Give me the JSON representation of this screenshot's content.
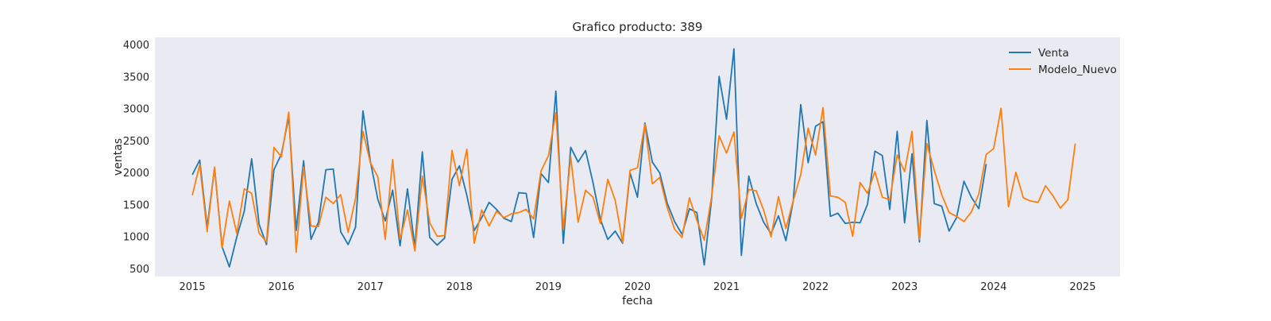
{
  "chart_data": {
    "type": "line",
    "title": "Grafico producto: 389",
    "xlabel": "fecha",
    "ylabel": "ventas",
    "xlim": [
      2014.58,
      2025.42
    ],
    "ylim": [
      380,
      4120
    ],
    "x_ticks": [
      2015,
      2016,
      2017,
      2018,
      2019,
      2020,
      2021,
      2022,
      2023,
      2024,
      2025
    ],
    "y_ticks": [
      500,
      1000,
      1500,
      2000,
      2500,
      3000,
      3500,
      4000
    ],
    "grid": false,
    "legend": "top-right",
    "series": [
      {
        "name": "Venta",
        "color": "#1f77b4",
        "start": 2015.0,
        "step_months": 1,
        "values": [
          1970,
          2200,
          1150,
          2080,
          850,
          530,
          1000,
          1400,
          2220,
          1200,
          880,
          2050,
          2290,
          2880,
          1100,
          2190,
          960,
          1230,
          2050,
          2060,
          1080,
          880,
          1150,
          2970,
          2180,
          1590,
          1250,
          1730,
          860,
          1750,
          840,
          2330,
          990,
          870,
          980,
          1900,
          2110,
          1650,
          1100,
          1300,
          1540,
          1430,
          1290,
          1240,
          1690,
          1680,
          990,
          1990,
          1850,
          3280,
          900,
          2400,
          2170,
          2350,
          1850,
          1270,
          960,
          1090,
          900,
          2000,
          1620,
          2780,
          2170,
          2000,
          1530,
          1240,
          1040,
          1440,
          1380,
          560,
          1600,
          3510,
          2840,
          3940,
          710,
          1950,
          1520,
          1230,
          1050,
          1330,
          940,
          1570,
          3070,
          2160,
          2730,
          2800,
          1320,
          1370,
          1210,
          1230,
          1220,
          1510,
          2340,
          2270,
          1430,
          2650,
          1220,
          2300,
          920,
          2820,
          1520,
          1480,
          1090,
          1300,
          1870,
          1620,
          1440,
          2140
        ],
        "values_note": "monthly 2015-01 to 2023-12"
      },
      {
        "name": "Modelo_Nuevo",
        "color": "#ff7f0e",
        "start": 2015.0,
        "step_months": 1,
        "values": [
          1650,
          2130,
          1080,
          2090,
          830,
          1560,
          1050,
          1750,
          1680,
          1060,
          920,
          2400,
          2250,
          2950,
          760,
          2090,
          1170,
          1160,
          1620,
          1520,
          1660,
          1070,
          1600,
          2650,
          2160,
          1940,
          960,
          2210,
          960,
          1420,
          780,
          1950,
          1220,
          1010,
          1020,
          2350,
          1800,
          2370,
          900,
          1420,
          1170,
          1400,
          1300,
          1360,
          1380,
          1430,
          1280,
          2030,
          2270,
          2940,
          1120,
          2250,
          1230,
          1730,
          1620,
          1210,
          1900,
          1570,
          910,
          2040,
          2080,
          2760,
          1830,
          1930,
          1460,
          1120,
          990,
          1610,
          1260,
          950,
          1630,
          2580,
          2310,
          2640,
          1290,
          1740,
          1720,
          1420,
          1000,
          1630,
          1130,
          1570,
          1970,
          2700,
          2280,
          3020,
          1640,
          1620,
          1540,
          1010,
          1850,
          1680,
          2020,
          1620,
          1580,
          2280,
          2020,
          2650,
          960,
          2460,
          2040,
          1660,
          1380,
          1320,
          1240,
          1390,
          1670,
          2290,
          2380,
          3010,
          1470,
          2010,
          1610,
          1560,
          1540,
          1800,
          1640,
          1450,
          1580,
          2460
        ],
        "values_note": "monthly 2015-01 to 2024-12"
      }
    ]
  }
}
